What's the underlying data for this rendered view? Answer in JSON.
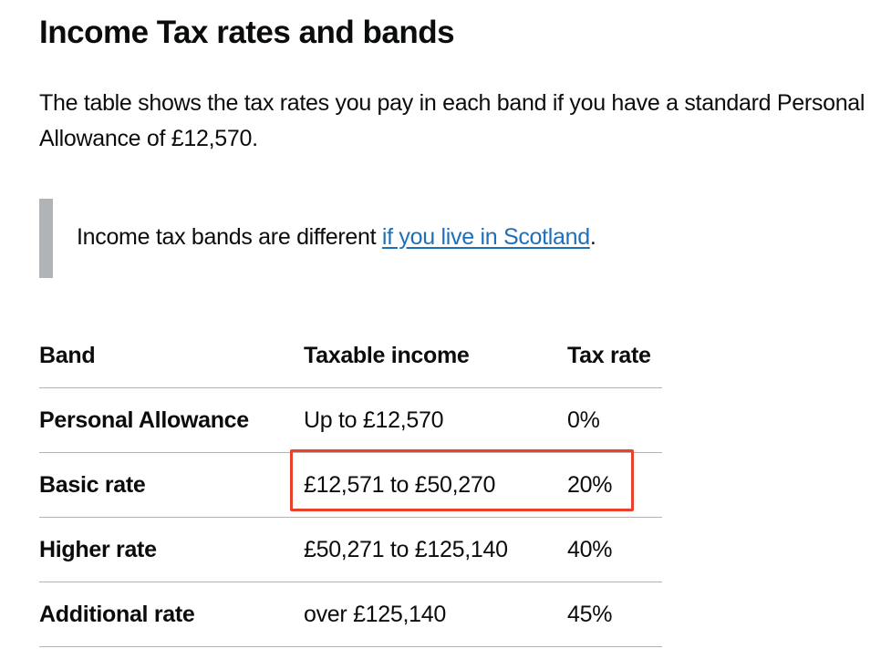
{
  "heading": "Income Tax rates and bands",
  "intro": "The table shows the tax rates you pay in each band if you have a standard Personal Allowance of £12,570.",
  "inset": {
    "text": "Income tax bands are different ",
    "link": "if you live in Scotland",
    "after": "."
  },
  "table": {
    "headers": [
      "Band",
      "Taxable income",
      "Tax rate"
    ],
    "rows": [
      [
        "Personal Allowance",
        "Up to £12,570",
        "0%"
      ],
      [
        "Basic rate",
        "£12,571 to £50,270",
        "20%"
      ],
      [
        "Higher rate",
        "£50,271 to £125,140",
        "40%"
      ],
      [
        "Additional rate",
        "over £125,140",
        "45%"
      ]
    ]
  }
}
